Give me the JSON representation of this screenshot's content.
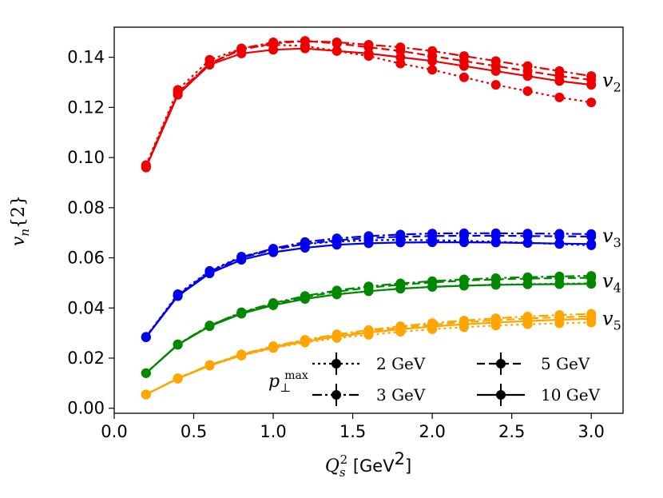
{
  "chart_data": {
    "type": "line",
    "xlabel": {
      "symbol": "Q",
      "sub": "s",
      "sup": "2",
      "unit_open": " [GeV",
      "unit_sup": "2",
      "unit_close": "]"
    },
    "ylabel": {
      "symbol": "v",
      "sub": "n",
      "rest": "{2}"
    },
    "xlim": [
      0.0,
      3.2
    ],
    "ylim": [
      -0.002,
      0.152
    ],
    "x_ticks": [
      0.0,
      0.5,
      1.0,
      1.5,
      2.0,
      2.5,
      3.0
    ],
    "x_tick_labels": [
      "0.0",
      "0.5",
      "1.0",
      "1.5",
      "2.0",
      "2.5",
      "3.0"
    ],
    "y_ticks": [
      0.0,
      0.02,
      0.04,
      0.06,
      0.08,
      0.1,
      0.12,
      0.14
    ],
    "y_tick_labels": [
      "0.00",
      "0.02",
      "0.04",
      "0.06",
      "0.08",
      "0.10",
      "0.12",
      "0.14"
    ],
    "grid": false,
    "x": [
      0.2,
      0.4,
      0.6,
      0.8,
      1.0,
      1.2,
      1.4,
      1.6,
      1.8,
      2.0,
      2.2,
      2.4,
      2.6,
      2.8,
      3.0
    ],
    "line_styles": {
      "2 GeV": "dotted",
      "3 GeV": "dashdot",
      "5 GeV": "dashed",
      "10 GeV": "solid"
    },
    "harmonics": [
      {
        "name": "v2",
        "label_symbol": "v",
        "label_sub": "2",
        "color": "#ee0000",
        "series": [
          {
            "pmax": "2 GeV",
            "values": [
              0.097,
              0.127,
              0.139,
              0.1435,
              0.145,
              0.1445,
              0.1425,
              0.1405,
              0.1375,
              0.135,
              0.132,
              0.129,
              0.1265,
              0.124,
              0.122
            ]
          },
          {
            "pmax": "3 GeV",
            "values": [
              0.0965,
              0.126,
              0.1375,
              0.1435,
              0.146,
              0.1465,
              0.146,
              0.145,
              0.144,
              0.1425,
              0.1405,
              0.1385,
              0.1365,
              0.1345,
              0.1325
            ]
          },
          {
            "pmax": "5 GeV",
            "values": [
              0.0962,
              0.1255,
              0.1375,
              0.143,
              0.1455,
              0.1465,
              0.1455,
              0.144,
              0.1425,
              0.1405,
              0.1385,
              0.1365,
              0.1345,
              0.1325,
              0.131
            ]
          },
          {
            "pmax": "10 GeV",
            "values": [
              0.096,
              0.125,
              0.137,
              0.1415,
              0.143,
              0.1435,
              0.1425,
              0.1415,
              0.14,
              0.1385,
              0.1365,
              0.1345,
              0.1325,
              0.1305,
              0.129
            ]
          }
        ]
      },
      {
        "name": "v3",
        "label_symbol": "v",
        "label_sub": "3",
        "color": "#0000ee",
        "series": [
          {
            "pmax": "2 GeV",
            "values": [
              0.0285,
              0.0455,
              0.0548,
              0.0605,
              0.0635,
              0.0655,
              0.0665,
              0.067,
              0.0672,
              0.067,
              0.0668,
              0.0664,
              0.066,
              0.0655,
              0.065
            ]
          },
          {
            "pmax": "3 GeV",
            "values": [
              0.0285,
              0.045,
              0.0545,
              0.0603,
              0.0637,
              0.0663,
              0.0678,
              0.0687,
              0.0693,
              0.0697,
              0.0698,
              0.0698,
              0.0697,
              0.0696,
              0.0695
            ]
          },
          {
            "pmax": "5 GeV",
            "values": [
              0.0284,
              0.0449,
              0.0543,
              0.06,
              0.0632,
              0.0656,
              0.067,
              0.0679,
              0.0684,
              0.0687,
              0.0688,
              0.0688,
              0.0687,
              0.0686,
              0.0685
            ]
          },
          {
            "pmax": "10 GeV",
            "values": [
              0.0283,
              0.0447,
              0.0538,
              0.0592,
              0.0622,
              0.064,
              0.0652,
              0.0658,
              0.0661,
              0.0662,
              0.0662,
              0.0661,
              0.0659,
              0.0657,
              0.0655
            ]
          }
        ]
      },
      {
        "name": "v4",
        "label_symbol": "v",
        "label_sub": "4",
        "color": "#008800",
        "series": [
          {
            "pmax": "2 GeV",
            "values": [
              0.014,
              0.0255,
              0.033,
              0.038,
              0.0413,
              0.0437,
              0.0455,
              0.0467,
              0.0477,
              0.0484,
              0.0489,
              0.0493,
              0.0495,
              0.0497,
              0.0498
            ]
          },
          {
            "pmax": "3 GeV",
            "values": [
              0.014,
              0.0255,
              0.033,
              0.0383,
              0.042,
              0.0448,
              0.047,
              0.0486,
              0.0498,
              0.0507,
              0.0514,
              0.0519,
              0.0523,
              0.0526,
              0.0528
            ]
          },
          {
            "pmax": "5 GeV",
            "values": [
              0.014,
              0.0254,
              0.0329,
              0.0381,
              0.0417,
              0.0444,
              0.0465,
              0.0481,
              0.0493,
              0.0502,
              0.0509,
              0.0514,
              0.0517,
              0.0519,
              0.052
            ]
          },
          {
            "pmax": "10 GeV",
            "values": [
              0.014,
              0.0253,
              0.0327,
              0.0377,
              0.0411,
              0.0436,
              0.0454,
              0.0467,
              0.0477,
              0.0484,
              0.0489,
              0.0492,
              0.0494,
              0.0495,
              0.0496
            ]
          }
        ]
      },
      {
        "name": "v5",
        "label_symbol": "v",
        "label_sub": "5",
        "color": "#ffa500",
        "series": [
          {
            "pmax": "2 GeV",
            "values": [
              0.0055,
              0.0118,
              0.017,
              0.021,
              0.024,
              0.0262,
              0.028,
              0.0293,
              0.0305,
              0.0315,
              0.0323,
              0.033,
              0.0335,
              0.0339,
              0.0342
            ]
          },
          {
            "pmax": "3 GeV",
            "values": [
              0.0055,
              0.012,
              0.0173,
              0.0215,
              0.0248,
              0.0273,
              0.0295,
              0.0312,
              0.0327,
              0.034,
              0.035,
              0.0359,
              0.0366,
              0.0372,
              0.0377
            ]
          },
          {
            "pmax": "5 GeV",
            "values": [
              0.0055,
              0.0119,
              0.0172,
              0.0213,
              0.0245,
              0.027,
              0.0291,
              0.0307,
              0.0321,
              0.0333,
              0.0343,
              0.0351,
              0.0358,
              0.0363,
              0.0367
            ]
          },
          {
            "pmax": "10 GeV",
            "values": [
              0.0055,
              0.0118,
              0.017,
              0.0211,
              0.0242,
              0.0266,
              0.0286,
              0.0302,
              0.0315,
              0.0326,
              0.0335,
              0.0342,
              0.0348,
              0.0353,
              0.0357
            ]
          }
        ]
      }
    ],
    "legend": {
      "title_symbol": "p",
      "title_sub": "⊥",
      "title_sup": "max",
      "placement": "lower-right",
      "entries": [
        "2 GeV",
        "3 GeV",
        "5 GeV",
        "10 GeV"
      ],
      "marker_color": "#000000"
    }
  }
}
